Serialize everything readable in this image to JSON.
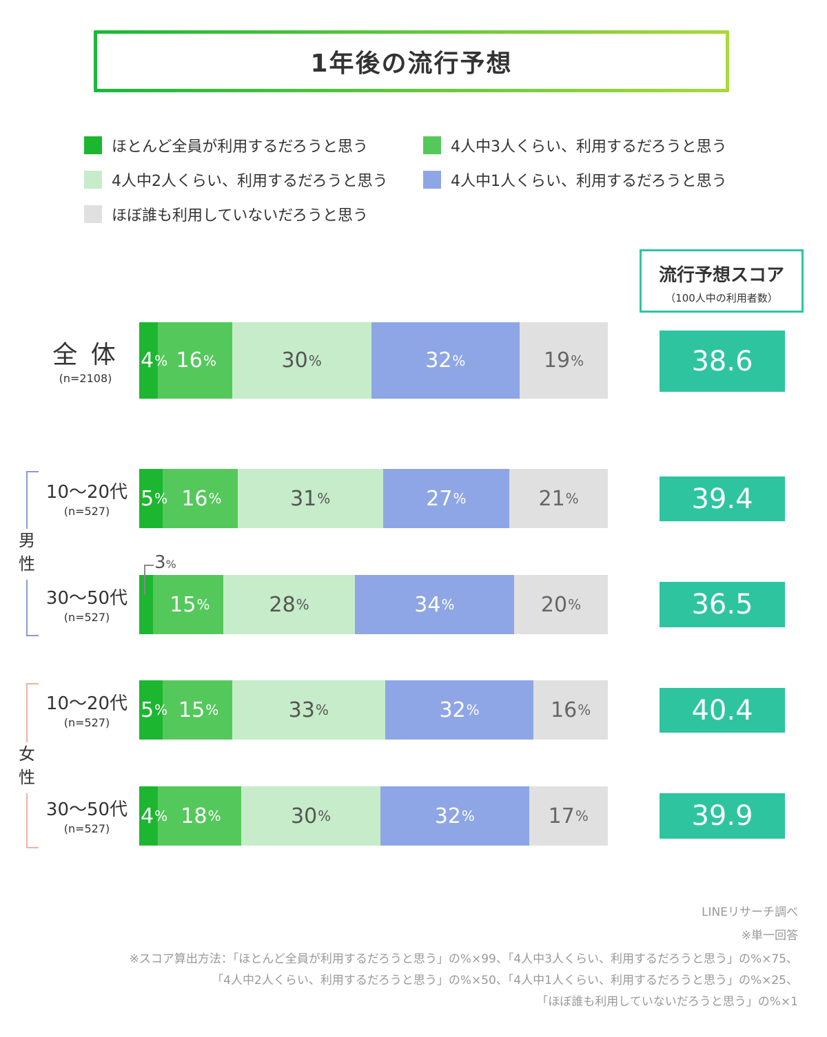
{
  "title": "1年後の流行予想",
  "legend": [
    {
      "label": "ほとんど全員が利用するだろうと思う",
      "color": "#1db631"
    },
    {
      "label": "4人中3人くらい、利用するだろうと思う",
      "color": "#55c85c"
    },
    {
      "label": "4人中2人くらい、利用するだろうと思う",
      "color": "#c6ecc9"
    },
    {
      "label": "4人中1人くらい、利用するだろうと思う",
      "color": "#8ea6e6"
    },
    {
      "label": "ほぼ誰も利用していないだろうと思う",
      "color": "#e0e0e0"
    }
  ],
  "score_header": {
    "title": "流行予想スコア",
    "subtitle": "（100人中の利用者数）"
  },
  "gender_labels": {
    "male": "男性",
    "female": "女性"
  },
  "chart_data": {
    "type": "bar",
    "orientation": "horizontal",
    "stacked": true,
    "title": "1年後の流行予想",
    "unit": "%",
    "categories": [
      {
        "label": "全 体",
        "n": "(n=2108)"
      },
      {
        "label": "10〜20代",
        "n": "(n=527)"
      },
      {
        "label": "30〜50代",
        "n": "(n=527)"
      },
      {
        "label": "10〜20代",
        "n": "(n=527)"
      },
      {
        "label": "30〜50代",
        "n": "(n=527)"
      }
    ],
    "series": [
      {
        "name": "ほとんど全員が利用するだろうと思う",
        "color": "#1db631",
        "values": [
          4,
          5,
          3,
          5,
          4
        ]
      },
      {
        "name": "4人中3人くらい、利用するだろうと思う",
        "color": "#55c85c",
        "values": [
          16,
          16,
          15,
          15,
          18
        ]
      },
      {
        "name": "4人中2人くらい、利用するだろうと思う",
        "color": "#c6ecc9",
        "values": [
          30,
          31,
          28,
          33,
          30
        ]
      },
      {
        "name": "4人中1人くらい、利用するだろうと思う",
        "color": "#8ea6e6",
        "values": [
          32,
          27,
          34,
          32,
          32
        ]
      },
      {
        "name": "ほぼ誰も利用していないだろうと思う",
        "color": "#e0e0e0",
        "values": [
          19,
          21,
          20,
          16,
          17
        ]
      }
    ],
    "scores": [
      38.6,
      39.4,
      36.5,
      40.4,
      39.9
    ],
    "score_color": "#2ec4a0"
  },
  "notes": {
    "source": "LINEリサーチ調べ",
    "single": "※単一回答",
    "method_1": "※スコア算出方法：「ほとんど全員が利用するだろうと思う」の%×99、「4人中3人くらい、利用するだろうと思う」の%×75、",
    "method_2": "「4人中2人くらい、利用するだろうと思う」の%×50、「4人中1人くらい、利用するだろうと思う」の%×25、",
    "method_3": "「ほぼ誰も利用していないだろうと思う」の%×1"
  }
}
